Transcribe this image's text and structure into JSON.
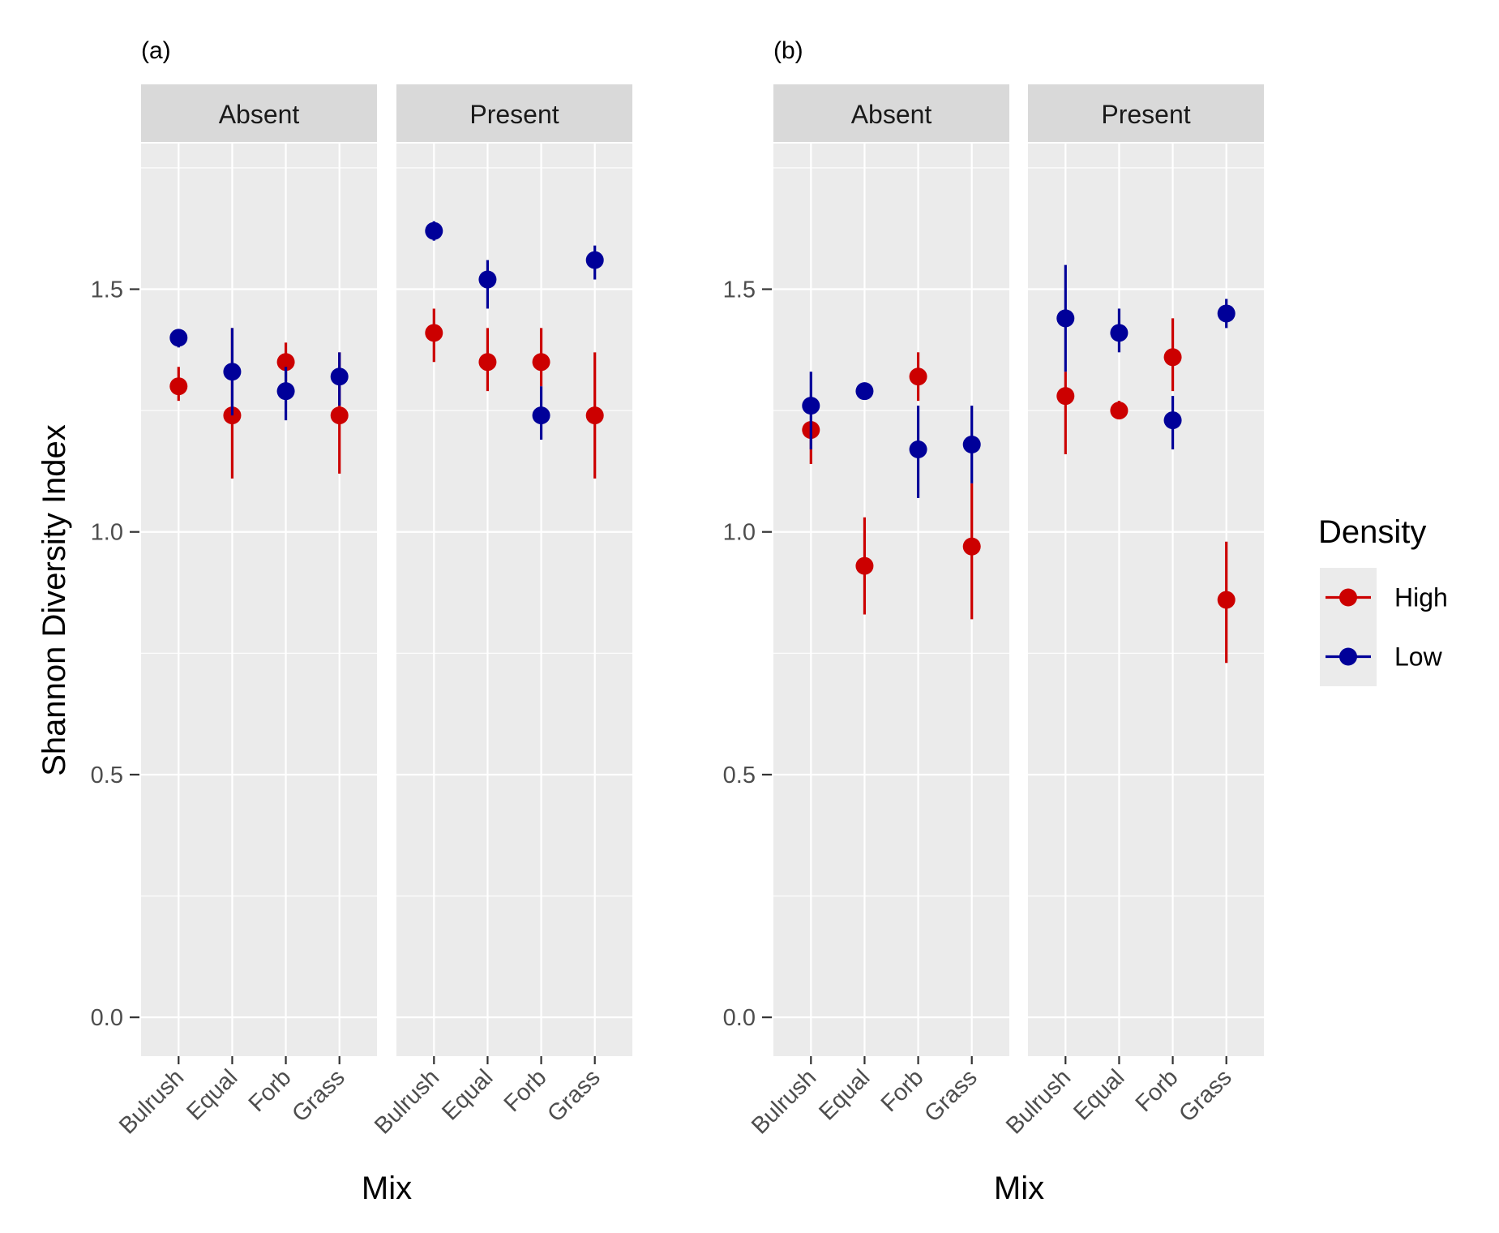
{
  "chart_data": [
    {
      "tag": "(a)",
      "type": "scatter",
      "ylabel": "Shannon Diversity Index",
      "xlabel": "Mix",
      "categories": [
        "Bulrush",
        "Equal",
        "Forb",
        "Grass"
      ],
      "ylim": [
        -0.08,
        1.8
      ],
      "yticks": [
        0.0,
        0.5,
        1.0,
        1.5
      ],
      "ytick_labels": [
        "0.0",
        "0.5",
        "1.0",
        "1.5"
      ],
      "grid": true,
      "facets": [
        {
          "label": "Absent",
          "series": [
            {
              "name": "High",
              "mean": [
                1.3,
                1.24,
                1.35,
                1.24
              ],
              "lower": [
                1.27,
                1.11,
                1.31,
                1.12
              ],
              "upper": [
                1.34,
                1.42,
                1.39,
                1.37
              ]
            },
            {
              "name": "Low",
              "mean": [
                1.4,
                1.33,
                1.29,
                1.32
              ],
              "lower": [
                1.38,
                1.24,
                1.23,
                1.26
              ],
              "upper": [
                1.41,
                1.42,
                1.34,
                1.37
              ]
            }
          ]
        },
        {
          "label": "Present",
          "series": [
            {
              "name": "High",
              "mean": [
                1.41,
                1.35,
                1.35,
                1.24
              ],
              "lower": [
                1.35,
                1.29,
                1.3,
                1.11
              ],
              "upper": [
                1.46,
                1.42,
                1.42,
                1.37
              ]
            },
            {
              "name": "Low",
              "mean": [
                1.62,
                1.52,
                1.24,
                1.56
              ],
              "lower": [
                1.6,
                1.46,
                1.19,
                1.52
              ],
              "upper": [
                1.64,
                1.56,
                1.3,
                1.59
              ]
            }
          ]
        }
      ]
    },
    {
      "tag": "(b)",
      "type": "scatter",
      "ylabel": "",
      "xlabel": "Mix",
      "categories": [
        "Bulrush",
        "Equal",
        "Forb",
        "Grass"
      ],
      "ylim": [
        -0.08,
        1.8
      ],
      "yticks": [
        0.0,
        0.5,
        1.0,
        1.5
      ],
      "ytick_labels": [
        "0.0",
        "0.5",
        "1.0",
        "1.5"
      ],
      "grid": true,
      "facets": [
        {
          "label": "Absent",
          "series": [
            {
              "name": "High",
              "mean": [
                1.21,
                0.93,
                1.32,
                0.97
              ],
              "lower": [
                1.14,
                0.83,
                1.27,
                0.82
              ],
              "upper": [
                1.22,
                1.03,
                1.37,
                1.1
              ]
            },
            {
              "name": "Low",
              "mean": [
                1.26,
                1.29,
                1.17,
                1.18
              ],
              "lower": [
                1.17,
                1.29,
                1.07,
                1.1
              ],
              "upper": [
                1.33,
                1.29,
                1.26,
                1.26
              ]
            }
          ]
        },
        {
          "label": "Present",
          "series": [
            {
              "name": "High",
              "mean": [
                1.28,
                1.25,
                1.36,
                0.86
              ],
              "lower": [
                1.16,
                1.24,
                1.29,
                0.73
              ],
              "upper": [
                1.33,
                1.27,
                1.44,
                0.98
              ]
            },
            {
              "name": "Low",
              "mean": [
                1.44,
                1.41,
                1.23,
                1.45
              ],
              "lower": [
                1.33,
                1.37,
                1.17,
                1.42
              ],
              "upper": [
                1.55,
                1.46,
                1.28,
                1.48
              ]
            }
          ]
        }
      ]
    }
  ],
  "legend": {
    "title": "Density",
    "position": "right",
    "items": [
      {
        "label": "High",
        "color": "#cc0000"
      },
      {
        "label": "Low",
        "color": "#000099"
      }
    ]
  }
}
